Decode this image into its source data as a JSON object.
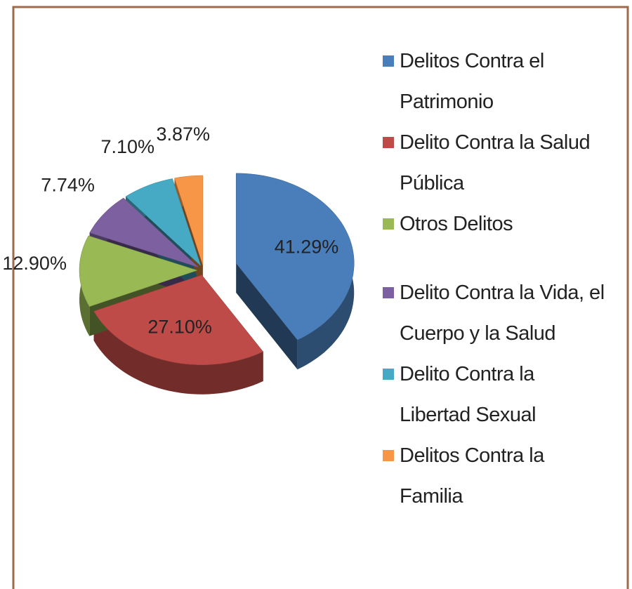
{
  "chart_data": {
    "type": "pie",
    "categories": [
      "Delitos Contra el Patrimonio",
      "Delito Contra la Salud Pública",
      "Otros Delitos",
      "Delito Contra la Vida, el Cuerpo y la Salud",
      "Delito Contra la Libertad Sexual",
      "Delitos Contra la Familia"
    ],
    "values": [
      41.29,
      27.1,
      12.9,
      7.74,
      7.1,
      3.87
    ],
    "value_labels": [
      "41.29%",
      "27.10%",
      "12.90%",
      "7.74%",
      "7.10%",
      "3.87%"
    ],
    "colors": [
      "#4a7ebb",
      "#be4b48",
      "#98b954",
      "#7d60a0",
      "#46aac5",
      "#f79646"
    ],
    "legend": "right"
  }
}
